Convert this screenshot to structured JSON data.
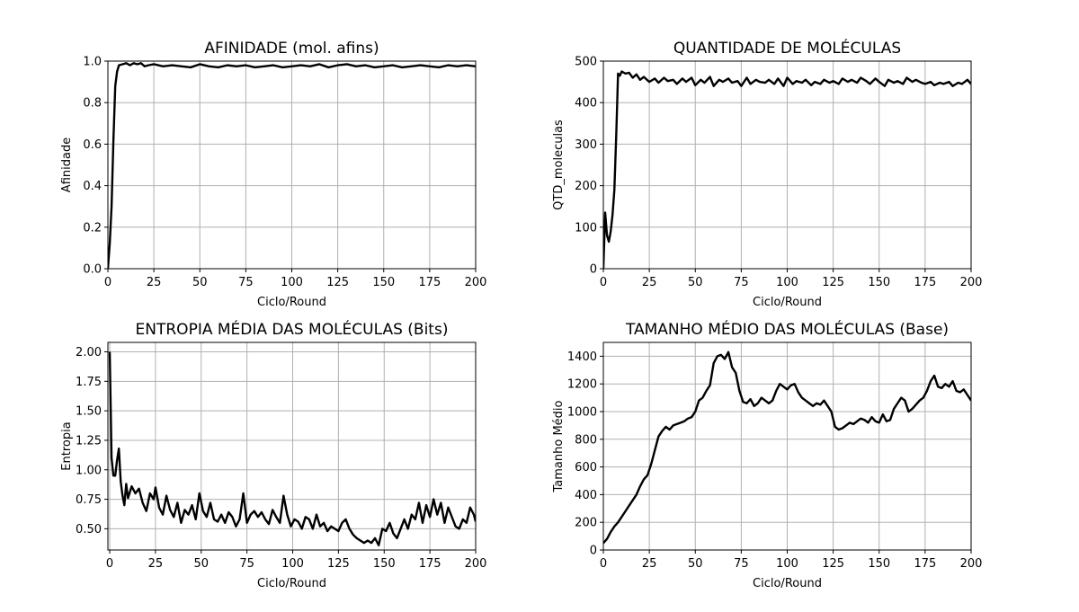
{
  "colors": {
    "line": "#000000",
    "grid": "#b0b0b0",
    "background": "#ffffff"
  },
  "chart_data": [
    {
      "type": "line",
      "title": "AFINIDADE (mol. afins)",
      "xlabel": "Ciclo/Round",
      "ylabel": "Afinidade",
      "xlim": [
        0,
        200
      ],
      "ylim": [
        0,
        1.0
      ],
      "grid": true,
      "xticks": [
        "0",
        "25",
        "50",
        "75",
        "100",
        "125",
        "150",
        "175",
        "200"
      ],
      "yticks": [
        "0.0",
        "0.2",
        "0.4",
        "0.6",
        "0.8",
        "1.0"
      ],
      "x": [
        0,
        1,
        2,
        3,
        4,
        5,
        6,
        8,
        10,
        12,
        14,
        16,
        18,
        20,
        22,
        25,
        30,
        35,
        40,
        45,
        50,
        55,
        60,
        65,
        70,
        75,
        80,
        85,
        90,
        95,
        100,
        105,
        110,
        115,
        120,
        125,
        130,
        135,
        140,
        145,
        150,
        155,
        160,
        165,
        170,
        175,
        180,
        185,
        190,
        195,
        200
      ],
      "y": [
        0.0,
        0.12,
        0.3,
        0.62,
        0.88,
        0.95,
        0.98,
        0.985,
        0.99,
        0.98,
        0.99,
        0.985,
        0.99,
        0.975,
        0.98,
        0.985,
        0.975,
        0.98,
        0.975,
        0.97,
        0.985,
        0.975,
        0.97,
        0.98,
        0.975,
        0.98,
        0.97,
        0.975,
        0.98,
        0.97,
        0.975,
        0.98,
        0.975,
        0.985,
        0.97,
        0.98,
        0.985,
        0.975,
        0.98,
        0.97,
        0.975,
        0.98,
        0.97,
        0.975,
        0.98,
        0.975,
        0.97,
        0.98,
        0.975,
        0.98,
        0.975
      ]
    },
    {
      "type": "line",
      "title": "QUANTIDADE DE MOLÉCULAS",
      "xlabel": "Ciclo/Round",
      "ylabel": "QTD_moleculas",
      "xlim": [
        0,
        200
      ],
      "ylim": [
        0,
        500
      ],
      "grid": true,
      "xticks": [
        "0",
        "25",
        "50",
        "75",
        "100",
        "125",
        "150",
        "175",
        "200"
      ],
      "yticks": [
        "0",
        "100",
        "200",
        "300",
        "400",
        "500"
      ],
      "x": [
        0,
        1,
        2,
        3,
        4,
        5,
        6,
        7,
        8,
        9,
        10,
        12,
        14,
        16,
        18,
        20,
        22,
        25,
        28,
        30,
        33,
        35,
        38,
        40,
        43,
        45,
        48,
        50,
        53,
        55,
        58,
        60,
        63,
        65,
        68,
        70,
        73,
        75,
        78,
        80,
        83,
        85,
        88,
        90,
        93,
        95,
        98,
        100,
        103,
        105,
        108,
        110,
        113,
        115,
        118,
        120,
        123,
        125,
        128,
        130,
        133,
        135,
        138,
        140,
        143,
        145,
        148,
        150,
        153,
        155,
        158,
        160,
        163,
        165,
        168,
        170,
        173,
        175,
        178,
        180,
        183,
        185,
        188,
        190,
        193,
        195,
        198,
        200
      ],
      "y": [
        0,
        135,
        80,
        65,
        90,
        130,
        190,
        320,
        470,
        465,
        475,
        470,
        472,
        460,
        468,
        455,
        462,
        450,
        458,
        448,
        460,
        452,
        455,
        445,
        458,
        450,
        460,
        442,
        455,
        448,
        462,
        440,
        455,
        450,
        458,
        448,
        452,
        440,
        460,
        445,
        455,
        450,
        448,
        455,
        445,
        458,
        440,
        460,
        445,
        452,
        448,
        455,
        442,
        450,
        445,
        455,
        448,
        452,
        445,
        458,
        450,
        455,
        448,
        460,
        452,
        445,
        458,
        450,
        440,
        455,
        448,
        452,
        445,
        460,
        450,
        455,
        448,
        445,
        450,
        442,
        448,
        445,
        450,
        440,
        448,
        445,
        455,
        445
      ]
    },
    {
      "type": "line",
      "title": "ENTROPIA MÉDIA DAS MOLÉCULAS (Bits)",
      "xlabel": "Ciclo/Round",
      "ylabel": "Entropia",
      "xlim": [
        -1,
        200
      ],
      "ylim": [
        0.32,
        2.08
      ],
      "grid": true,
      "xticks": [
        "0",
        "25",
        "50",
        "75",
        "100",
        "125",
        "150",
        "175",
        "200"
      ],
      "yticks": [
        "0.50",
        "0.75",
        "1.00",
        "1.25",
        "1.50",
        "1.75",
        "2.00"
      ],
      "x": [
        0,
        1,
        2,
        3,
        4,
        5,
        6,
        7,
        8,
        9,
        10,
        12,
        14,
        16,
        18,
        20,
        22,
        24,
        25,
        27,
        29,
        31,
        33,
        35,
        37,
        39,
        41,
        43,
        45,
        47,
        49,
        51,
        53,
        55,
        57,
        59,
        61,
        63,
        65,
        67,
        69,
        71,
        73,
        75,
        77,
        79,
        81,
        83,
        85,
        87,
        89,
        91,
        93,
        95,
        97,
        99,
        101,
        103,
        105,
        107,
        109,
        111,
        113,
        115,
        117,
        119,
        121,
        123,
        125,
        127,
        129,
        131,
        133,
        135,
        137,
        139,
        141,
        143,
        145,
        147,
        149,
        151,
        153,
        155,
        157,
        159,
        161,
        163,
        165,
        167,
        169,
        171,
        173,
        175,
        177,
        179,
        181,
        183,
        185,
        187,
        189,
        191,
        193,
        195,
        197,
        199,
        200
      ],
      "y": [
        2.0,
        1.1,
        0.95,
        0.95,
        1.08,
        1.18,
        0.9,
        0.78,
        0.7,
        0.88,
        0.76,
        0.86,
        0.8,
        0.84,
        0.72,
        0.65,
        0.8,
        0.75,
        0.85,
        0.68,
        0.62,
        0.78,
        0.66,
        0.6,
        0.72,
        0.55,
        0.66,
        0.62,
        0.7,
        0.58,
        0.8,
        0.65,
        0.6,
        0.72,
        0.58,
        0.56,
        0.62,
        0.55,
        0.64,
        0.6,
        0.52,
        0.58,
        0.8,
        0.55,
        0.62,
        0.65,
        0.6,
        0.64,
        0.58,
        0.54,
        0.66,
        0.6,
        0.55,
        0.78,
        0.62,
        0.52,
        0.58,
        0.56,
        0.5,
        0.6,
        0.58,
        0.5,
        0.62,
        0.52,
        0.55,
        0.48,
        0.52,
        0.5,
        0.48,
        0.55,
        0.58,
        0.5,
        0.45,
        0.42,
        0.4,
        0.38,
        0.4,
        0.38,
        0.42,
        0.36,
        0.5,
        0.48,
        0.55,
        0.46,
        0.42,
        0.5,
        0.58,
        0.5,
        0.62,
        0.58,
        0.72,
        0.55,
        0.7,
        0.6,
        0.75,
        0.62,
        0.72,
        0.55,
        0.68,
        0.6,
        0.52,
        0.5,
        0.58,
        0.55,
        0.68,
        0.62,
        0.56
      ]
    },
    {
      "type": "line",
      "title": "TAMANHO MÉDIO DAS MOLÉCULAS (Base)",
      "xlabel": "Ciclo/Round",
      "ylabel": "Tamanho Médio",
      "xlim": [
        0,
        200
      ],
      "ylim": [
        0,
        1500
      ],
      "grid": true,
      "xticks": [
        "0",
        "25",
        "50",
        "75",
        "100",
        "125",
        "150",
        "175",
        "200"
      ],
      "yticks": [
        "0",
        "200",
        "400",
        "600",
        "800",
        "1000",
        "1200",
        "1400"
      ],
      "x": [
        0,
        2,
        4,
        6,
        8,
        10,
        12,
        14,
        16,
        18,
        20,
        22,
        24,
        26,
        28,
        30,
        32,
        34,
        36,
        38,
        40,
        42,
        44,
        46,
        48,
        50,
        52,
        54,
        56,
        58,
        60,
        62,
        64,
        66,
        68,
        70,
        72,
        74,
        76,
        78,
        80,
        82,
        84,
        86,
        88,
        90,
        92,
        94,
        96,
        98,
        100,
        102,
        104,
        106,
        108,
        110,
        112,
        114,
        116,
        118,
        120,
        122,
        124,
        126,
        128,
        130,
        132,
        134,
        136,
        138,
        140,
        142,
        144,
        146,
        148,
        150,
        152,
        154,
        156,
        158,
        160,
        162,
        164,
        166,
        168,
        170,
        172,
        174,
        176,
        178,
        180,
        182,
        184,
        186,
        188,
        190,
        192,
        194,
        196,
        198,
        200
      ],
      "y": [
        50,
        80,
        130,
        170,
        200,
        240,
        280,
        320,
        360,
        400,
        460,
        510,
        540,
        620,
        720,
        820,
        860,
        890,
        870,
        900,
        910,
        920,
        930,
        950,
        960,
        1000,
        1080,
        1100,
        1150,
        1190,
        1350,
        1400,
        1410,
        1380,
        1430,
        1320,
        1280,
        1150,
        1070,
        1060,
        1090,
        1040,
        1060,
        1100,
        1080,
        1060,
        1080,
        1150,
        1200,
        1180,
        1160,
        1190,
        1200,
        1140,
        1100,
        1080,
        1060,
        1040,
        1060,
        1050,
        1080,
        1040,
        1000,
        890,
        870,
        880,
        900,
        920,
        910,
        930,
        950,
        940,
        920,
        960,
        930,
        920,
        980,
        930,
        940,
        1020,
        1060,
        1100,
        1080,
        1000,
        1020,
        1050,
        1080,
        1100,
        1150,
        1220,
        1260,
        1180,
        1170,
        1200,
        1180,
        1220,
        1150,
        1140,
        1160,
        1120,
        1080
      ]
    }
  ]
}
